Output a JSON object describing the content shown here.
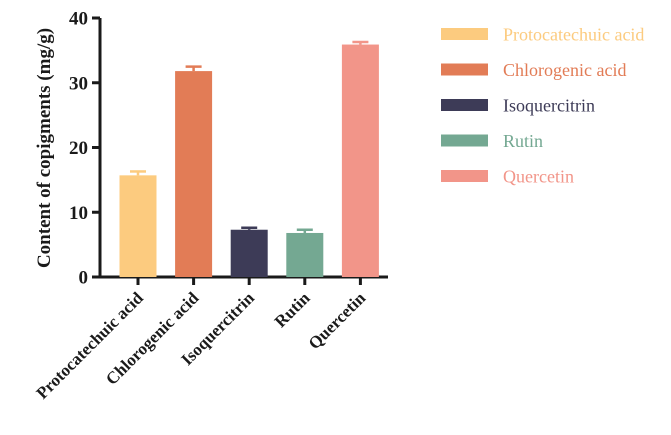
{
  "chart_data": {
    "type": "bar",
    "categories": [
      "Protocatechuic acid",
      "Chlorogenic acid",
      "Isoquercitrin",
      "Rutin",
      "Quercetin"
    ],
    "values": [
      15.7,
      31.8,
      7.3,
      6.8,
      35.9
    ],
    "errors": [
      0.6,
      0.7,
      0.3,
      0.5,
      0.4
    ],
    "colors": [
      "#fccb7f",
      "#e27c56",
      "#3d3b57",
      "#74a892",
      "#f29589"
    ],
    "ylabel": "Content of copigments (mg/g)",
    "ylim": [
      0,
      40
    ],
    "yticks": [
      0,
      10,
      20,
      30,
      40
    ],
    "grid": false,
    "legend": {
      "placement": "right",
      "entries": [
        "Protocatechuic acid",
        "Chlorogenic acid",
        "Isoquercitrin",
        "Rutin",
        "Quercetin"
      ]
    }
  }
}
